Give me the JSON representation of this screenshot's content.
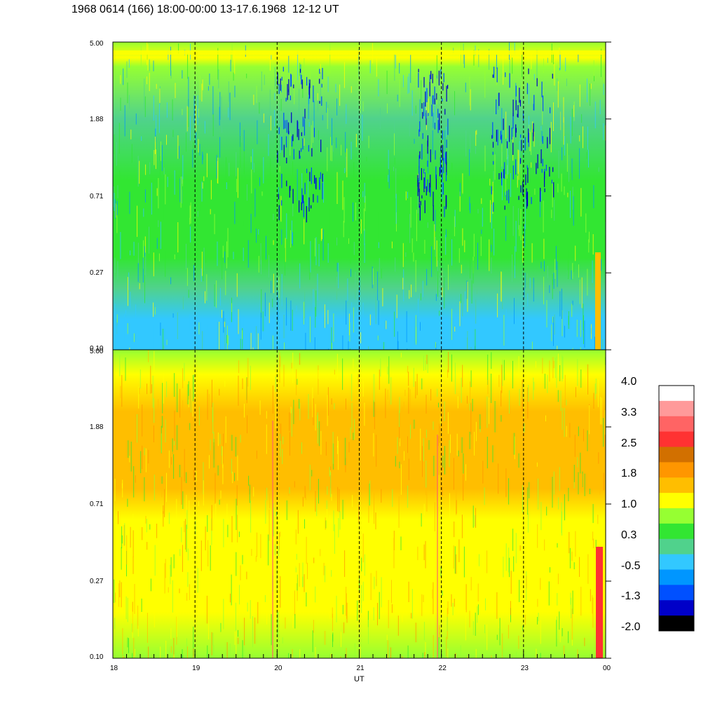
{
  "title": "1968 0614 (166) 18:00-00:00 13-17.6.1968  12-12 UT",
  "chart_data": [
    {
      "type": "heatmap",
      "panel": "top",
      "x_ticks": [
        "18",
        "19",
        "20",
        "21",
        "22",
        "23",
        "00"
      ],
      "y_ticks": [
        "5.00",
        "1.88",
        "0.71",
        "0.27",
        "0.10"
      ],
      "y_scale": "log",
      "ylim": [
        0.1,
        5.0
      ],
      "dominant_levels": [
        "green",
        "cyan",
        "light-green"
      ]
    },
    {
      "type": "heatmap",
      "panel": "bottom",
      "x_ticks": [
        "18",
        "19",
        "20",
        "21",
        "22",
        "23",
        "00"
      ],
      "y_ticks": [
        "5.00",
        "1.88",
        "0.71",
        "0.27",
        "0.10"
      ],
      "y_scale": "log",
      "ylim": [
        0.1,
        5.0
      ],
      "xlabel": "UT",
      "dominant_levels": [
        "orange",
        "yellow",
        "light-green"
      ]
    }
  ],
  "colorbar": {
    "labels": [
      "4.0",
      "3.3",
      "2.5",
      "1.8",
      "1.0",
      "0.3",
      "-0.5",
      "-1.3",
      "-2.0"
    ],
    "colors": [
      "#ffffff",
      "#ff9a9a",
      "#ff6464",
      "#ff3232",
      "#d27000",
      "#ff9600",
      "#ffbe00",
      "#ffff00",
      "#96ff32",
      "#32e632",
      "#50d28c",
      "#32c8ff",
      "#0096ff",
      "#0050ff",
      "#0000c8",
      "#000000"
    ]
  },
  "xlabel": "UT"
}
